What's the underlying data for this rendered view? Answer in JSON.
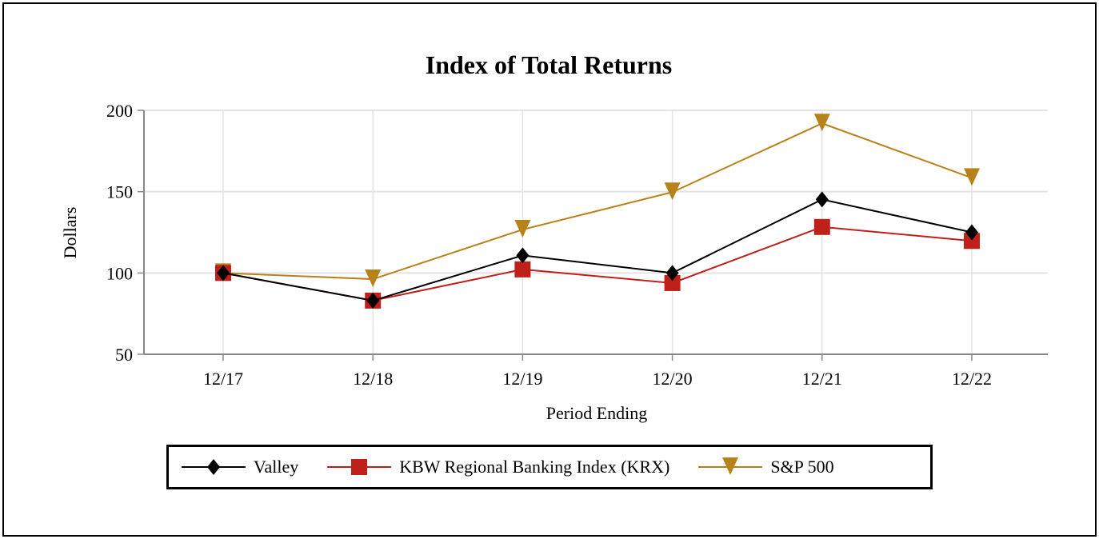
{
  "chart_data": {
    "type": "line",
    "title": "Index of Total Returns",
    "xlabel": "Period Ending",
    "ylabel": "Dollars",
    "categories": [
      "12/17",
      "12/18",
      "12/19",
      "12/20",
      "12/21",
      "12/22"
    ],
    "ylim": [
      50,
      200
    ],
    "yticks": [
      50,
      100,
      150,
      200
    ],
    "grid": true,
    "legend_position": "bottom",
    "series": [
      {
        "name": "Valley",
        "color": "#000000",
        "marker": "diamond",
        "values": [
          100,
          83,
          110.8,
          100,
          145.2,
          125
        ]
      },
      {
        "name": "KBW Regional Banking Index (KRX)",
        "color": "#c0201a",
        "marker": "square",
        "values": [
          100,
          83,
          102.2,
          93.8,
          128.3,
          119.7
        ]
      },
      {
        "name": "S&P 500",
        "color": "#b8821a",
        "marker": "triangle-down",
        "values": [
          100,
          96.2,
          126.7,
          149.7,
          192,
          158.5
        ]
      }
    ]
  }
}
